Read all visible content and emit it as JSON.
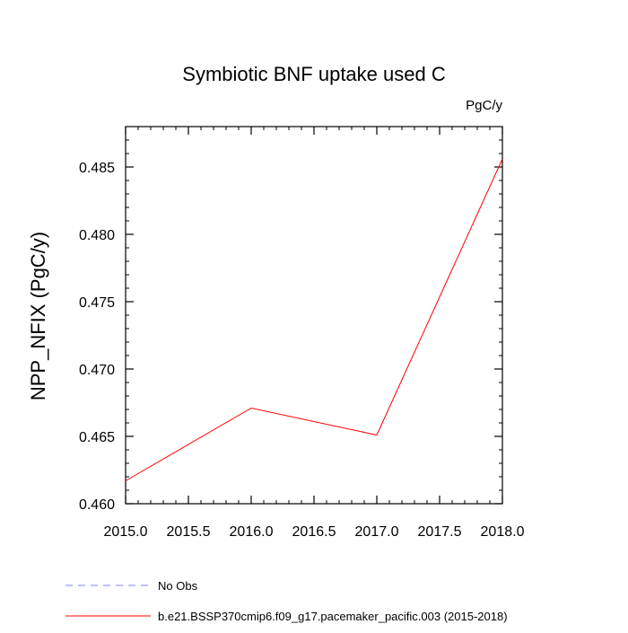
{
  "chart_data": {
    "type": "line",
    "title": "Symbiotic BNF uptake used C",
    "units": "PgC/y",
    "xlabel": "",
    "ylabel": "NPP_NFIX  (PgC/y)",
    "xlim": [
      2015.0,
      2018.0
    ],
    "ylim": [
      0.46,
      0.488
    ],
    "xticks": [
      2015.0,
      2015.5,
      2016.0,
      2016.5,
      2017.0,
      2017.5,
      2018.0
    ],
    "xtick_labels": [
      "2015.0",
      "2015.5",
      "2016.0",
      "2016.5",
      "2017.0",
      "2017.5",
      "2018.0"
    ],
    "yticks": [
      0.46,
      0.465,
      0.47,
      0.475,
      0.48,
      0.485
    ],
    "ytick_labels": [
      "0.460",
      "0.465",
      "0.470",
      "0.475",
      "0.480",
      "0.485"
    ],
    "grid": false,
    "legend_placement": "bottom",
    "series": [
      {
        "name": "b.e21.BSSP370cmip6.f09_g17.pacemaker_pacific.003 (2015-2018)",
        "color": "#ff0000",
        "style": "solid",
        "x": [
          2015,
          2016,
          2017,
          2018
        ],
        "y": [
          0.4617,
          0.4671,
          0.4651,
          0.4856
        ]
      }
    ],
    "legend": [
      {
        "label": "No Obs",
        "color": "#8080ff",
        "style": "dashed"
      },
      {
        "label": "b.e21.BSSP370cmip6.f09_g17.pacemaker_pacific.003 (2015-2018)",
        "color": "#ff0000",
        "style": "solid"
      }
    ]
  }
}
